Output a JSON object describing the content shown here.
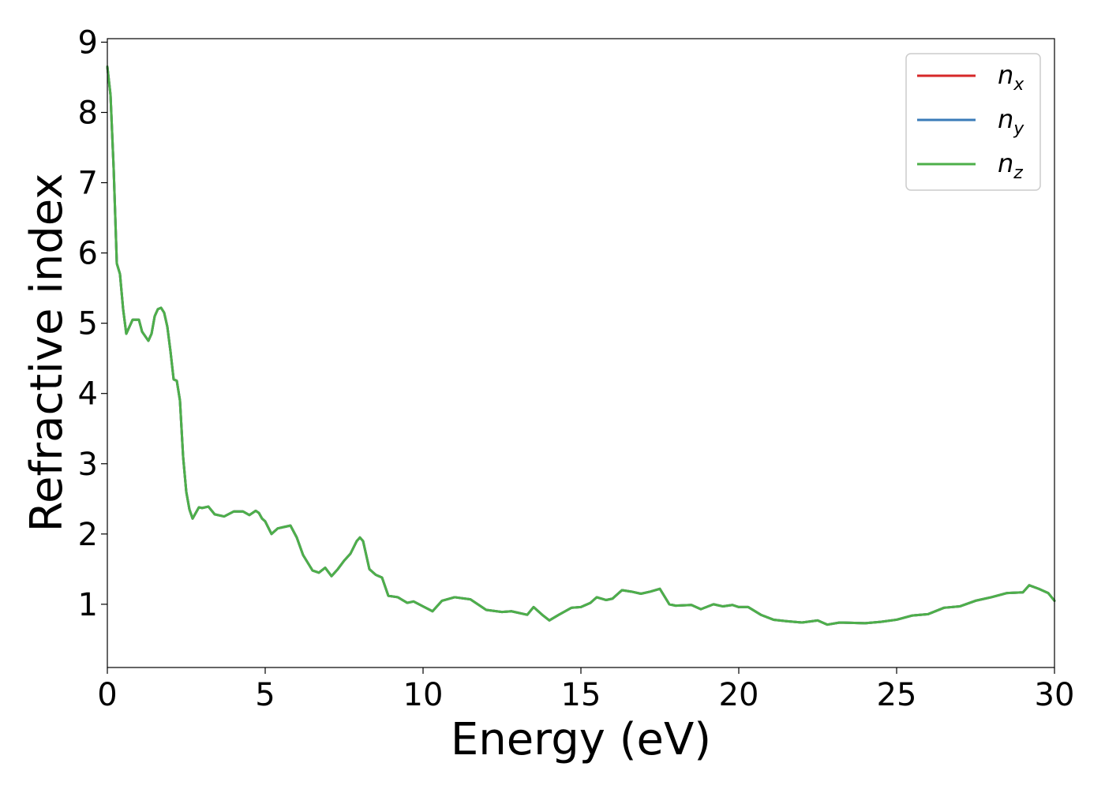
{
  "chart_data": {
    "type": "line",
    "title": "",
    "xlabel": "Energy (eV)",
    "ylabel": "Refractive index",
    "xlim": [
      0,
      30
    ],
    "ylim": [
      0.1,
      9.05
    ],
    "xticks": [
      0,
      5,
      10,
      15,
      20,
      25,
      30
    ],
    "yticks": [
      1,
      2,
      3,
      4,
      5,
      6,
      7,
      8,
      9
    ],
    "legend_position": "top-right",
    "grid": false,
    "series": [
      {
        "name": "n",
        "subscript": "x",
        "color": "#d62728"
      },
      {
        "name": "n",
        "subscript": "y",
        "color": "#3a7bb8"
      },
      {
        "name": "n",
        "subscript": "z",
        "color": "#4daf4a"
      }
    ],
    "x": [
      0,
      0.1,
      0.2,
      0.3,
      0.4,
      0.5,
      0.6,
      0.7,
      0.8,
      1.0,
      1.1,
      1.3,
      1.4,
      1.5,
      1.6,
      1.7,
      1.8,
      1.9,
      2.0,
      2.1,
      2.2,
      2.3,
      2.4,
      2.5,
      2.6,
      2.7,
      2.8,
      2.9,
      3.0,
      3.2,
      3.4,
      3.7,
      4.0,
      4.3,
      4.5,
      4.7,
      4.8,
      4.9,
      5.0,
      5.2,
      5.4,
      5.6,
      5.8,
      6.0,
      6.2,
      6.5,
      6.7,
      6.9,
      7.1,
      7.3,
      7.5,
      7.7,
      7.9,
      8.0,
      8.1,
      8.3,
      8.5,
      8.7,
      8.9,
      9.2,
      9.5,
      9.7,
      10.0,
      10.3,
      10.6,
      11.0,
      11.5,
      12.0,
      12.5,
      12.8,
      13.3,
      13.5,
      13.8,
      14.0,
      14.3,
      14.7,
      15.0,
      15.3,
      15.5,
      15.8,
      16.0,
      16.3,
      16.6,
      16.9,
      17.2,
      17.5,
      17.8,
      18.0,
      18.5,
      18.8,
      19.2,
      19.5,
      19.8,
      20.0,
      20.3,
      20.7,
      21.1,
      21.5,
      22.0,
      22.5,
      22.8,
      23.2,
      24.0,
      24.5,
      25.0,
      25.5,
      26.0,
      26.5,
      27.0,
      27.5,
      28.0,
      28.5,
      29.0,
      29.2,
      29.5,
      29.8,
      30.0
    ],
    "values": [
      8.65,
      8.25,
      7.2,
      5.85,
      5.7,
      5.2,
      4.85,
      4.95,
      5.05,
      5.05,
      4.88,
      4.75,
      4.85,
      5.1,
      5.2,
      5.22,
      5.15,
      4.95,
      4.6,
      4.2,
      4.18,
      3.9,
      3.1,
      2.6,
      2.35,
      2.22,
      2.3,
      2.38,
      2.37,
      2.39,
      2.28,
      2.25,
      2.32,
      2.32,
      2.27,
      2.33,
      2.3,
      2.22,
      2.18,
      2.0,
      2.08,
      2.1,
      2.12,
      1.95,
      1.7,
      1.48,
      1.45,
      1.52,
      1.4,
      1.5,
      1.62,
      1.72,
      1.9,
      1.95,
      1.9,
      1.5,
      1.42,
      1.38,
      1.12,
      1.1,
      1.02,
      1.04,
      0.97,
      0.9,
      1.05,
      1.1,
      1.07,
      0.92,
      0.89,
      0.9,
      0.85,
      0.96,
      0.84,
      0.77,
      0.85,
      0.95,
      0.96,
      1.02,
      1.1,
      1.06,
      1.08,
      1.2,
      1.18,
      1.15,
      1.18,
      1.22,
      1.0,
      0.98,
      0.99,
      0.93,
      1.0,
      0.97,
      0.99,
      0.96,
      0.96,
      0.85,
      0.78,
      0.76,
      0.74,
      0.77,
      0.71,
      0.74,
      0.73,
      0.75,
      0.78,
      0.84,
      0.86,
      0.95,
      0.97,
      1.05,
      1.1,
      1.16,
      1.17,
      1.27,
      1.22,
      1.16,
      1.05
    ]
  }
}
